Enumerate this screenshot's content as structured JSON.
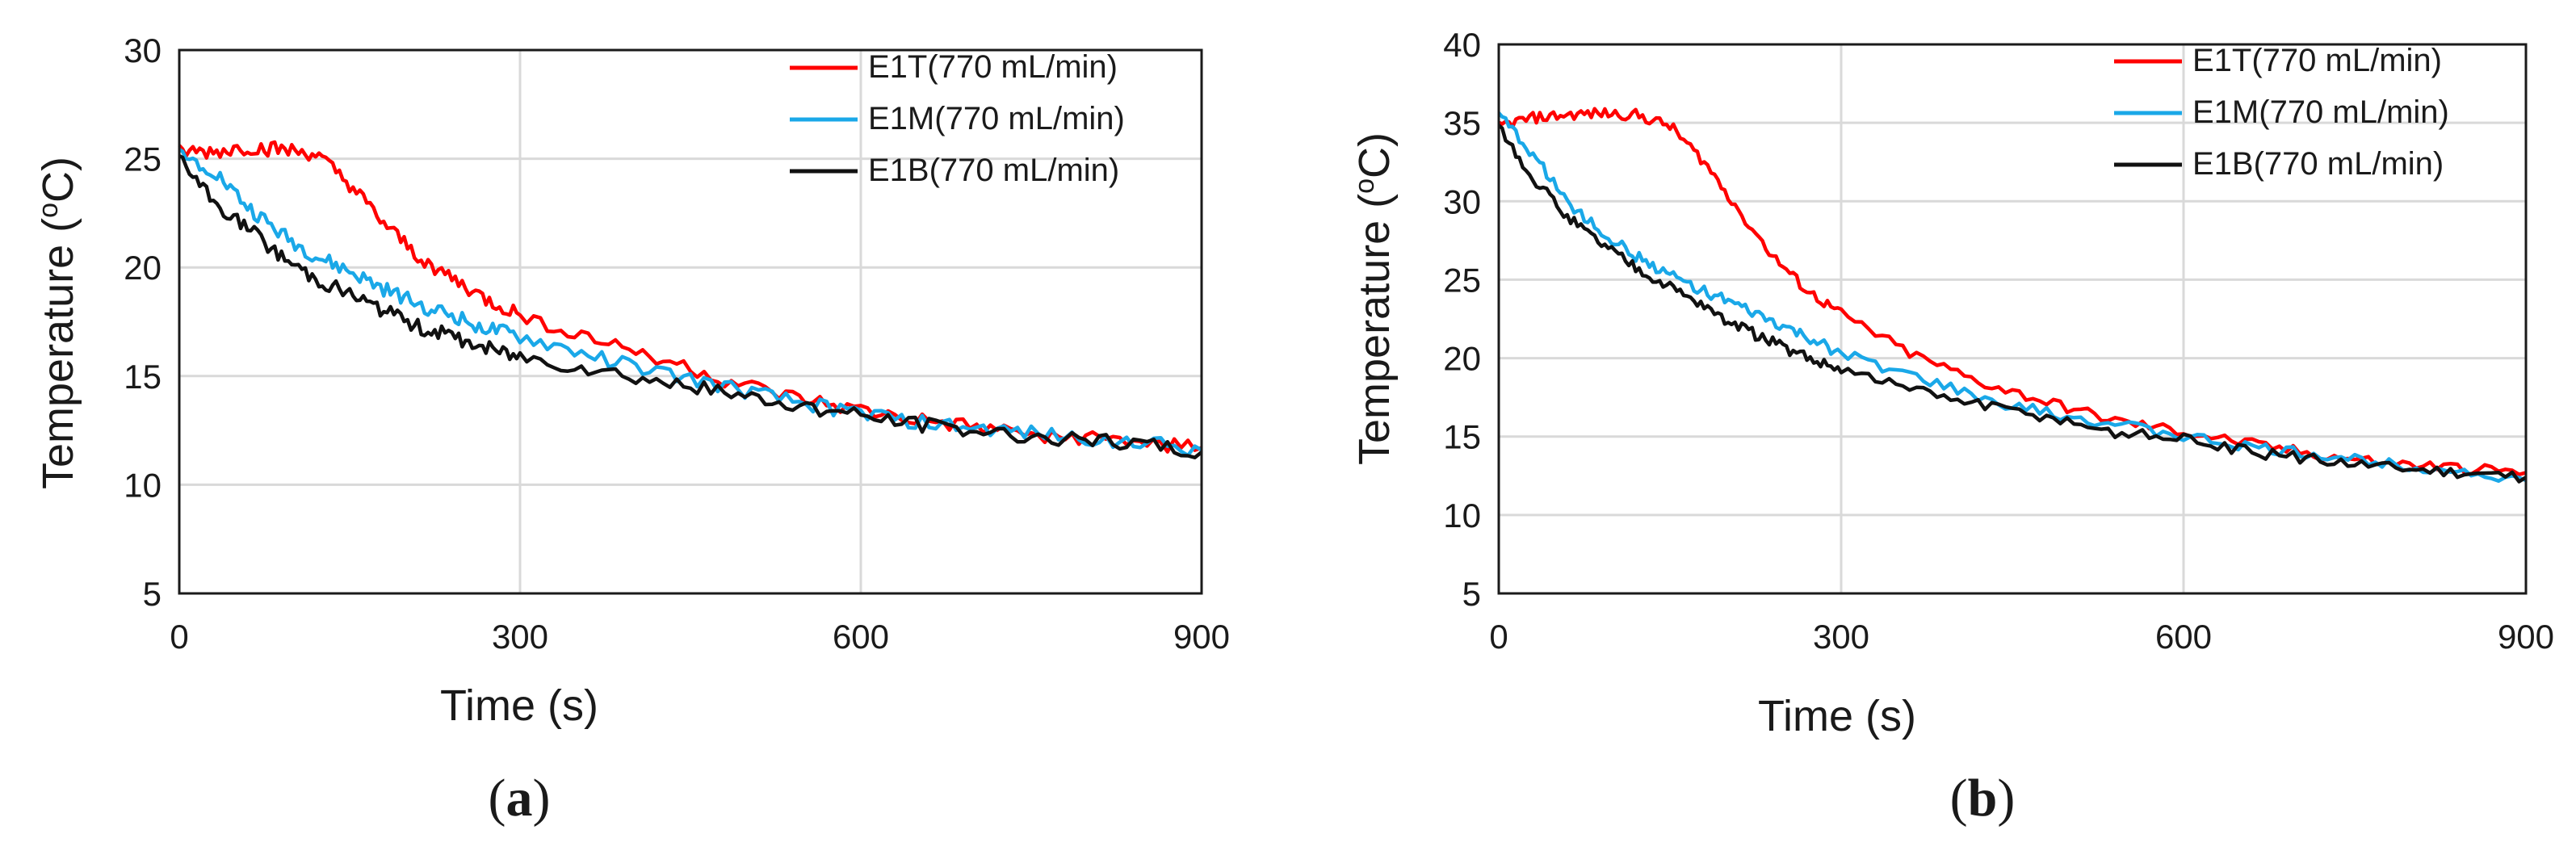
{
  "chart_data": [
    {
      "id": "a",
      "type": "line",
      "panel_label": "a",
      "xlabel": "Time (s)",
      "ylabel": "Temperature (",
      "ylabel_sup": "o",
      "ylabel_end": "C)",
      "xlim": [
        0,
        900
      ],
      "ylim": [
        5,
        30
      ],
      "xticks": [
        0,
        300,
        600,
        900
      ],
      "yticks": [
        5,
        10,
        15,
        20,
        25,
        30
      ],
      "legend_position": "top-right",
      "series": [
        {
          "name": "E1T(770 mL/min)",
          "color": "#ff0000",
          "x": [
            0,
            30,
            60,
            90,
            120,
            150,
            180,
            210,
            240,
            270,
            300,
            360,
            420,
            480,
            540,
            600,
            660,
            720,
            780,
            840,
            900
          ],
          "y": [
            25.3,
            25.3,
            25.5,
            25.4,
            25.2,
            23.8,
            22.0,
            20.5,
            19.5,
            18.5,
            17.8,
            16.8,
            15.9,
            14.8,
            14.0,
            13.4,
            12.9,
            12.5,
            12.2,
            12.0,
            11.7
          ]
        },
        {
          "name": "E1M(770 mL/min)",
          "color": "#1aa8e8",
          "x": [
            0,
            30,
            60,
            90,
            120,
            150,
            180,
            210,
            240,
            270,
            300,
            360,
            420,
            480,
            540,
            600,
            660,
            720,
            780,
            840,
            900
          ],
          "y": [
            25.2,
            24.5,
            22.8,
            21.5,
            20.5,
            19.8,
            19.0,
            18.3,
            17.8,
            17.2,
            16.8,
            16.0,
            15.2,
            14.5,
            13.8,
            13.3,
            12.8,
            12.5,
            12.2,
            12.0,
            11.6
          ]
        },
        {
          "name": "E1B(770 mL/min)",
          "color": "#111111",
          "x": [
            0,
            30,
            60,
            90,
            120,
            150,
            180,
            210,
            240,
            270,
            300,
            360,
            420,
            480,
            540,
            600,
            660,
            720,
            780,
            840,
            900
          ],
          "y": [
            25.0,
            23.0,
            21.8,
            20.5,
            19.5,
            18.8,
            18.0,
            17.3,
            16.8,
            16.3,
            15.9,
            15.4,
            14.8,
            14.2,
            13.7,
            13.2,
            12.7,
            12.4,
            12.1,
            11.9,
            11.5
          ]
        }
      ]
    },
    {
      "id": "b",
      "type": "line",
      "panel_label": "b",
      "xlabel": "Time (s)",
      "ylabel": "Temperature (",
      "ylabel_sup": "o",
      "ylabel_end": "C)",
      "xlim": [
        0,
        900
      ],
      "ylim": [
        5,
        40
      ],
      "xticks": [
        0,
        300,
        600,
        900
      ],
      "yticks": [
        5,
        10,
        15,
        20,
        25,
        30,
        35,
        40
      ],
      "legend_position": "top-right",
      "series": [
        {
          "name": "E1T(770 mL/min)",
          "color": "#ff0000",
          "x": [
            0,
            30,
            60,
            90,
            120,
            150,
            180,
            210,
            240,
            270,
            300,
            360,
            420,
            480,
            540,
            600,
            660,
            720,
            780,
            840,
            900
          ],
          "y": [
            34.8,
            35.3,
            35.5,
            35.6,
            35.5,
            34.8,
            32.5,
            29.5,
            26.5,
            24.3,
            22.8,
            20.3,
            18.5,
            17.2,
            16.0,
            15.3,
            14.5,
            13.8,
            13.3,
            13.0,
            12.7
          ]
        },
        {
          "name": "E1M(770 mL/min)",
          "color": "#1aa8e8",
          "x": [
            0,
            30,
            60,
            90,
            120,
            150,
            180,
            210,
            240,
            270,
            300,
            360,
            420,
            480,
            540,
            600,
            660,
            720,
            780,
            840,
            900
          ],
          "y": [
            35.5,
            33.0,
            30.0,
            28.0,
            26.5,
            25.3,
            24.3,
            23.3,
            22.3,
            21.3,
            20.3,
            18.9,
            17.5,
            16.5,
            15.8,
            15.0,
            14.3,
            13.8,
            13.3,
            12.8,
            12.2
          ]
        },
        {
          "name": "E1B(770 mL/min)",
          "color": "#111111",
          "x": [
            0,
            30,
            60,
            90,
            120,
            150,
            180,
            210,
            240,
            270,
            300,
            360,
            420,
            480,
            540,
            600,
            660,
            720,
            780,
            840,
            900
          ],
          "y": [
            34.8,
            31.5,
            29.0,
            27.3,
            25.8,
            24.5,
            23.3,
            22.0,
            21.0,
            20.0,
            19.3,
            18.0,
            17.0,
            16.2,
            15.3,
            14.8,
            14.0,
            13.5,
            13.0,
            12.7,
            12.4
          ]
        }
      ]
    }
  ]
}
